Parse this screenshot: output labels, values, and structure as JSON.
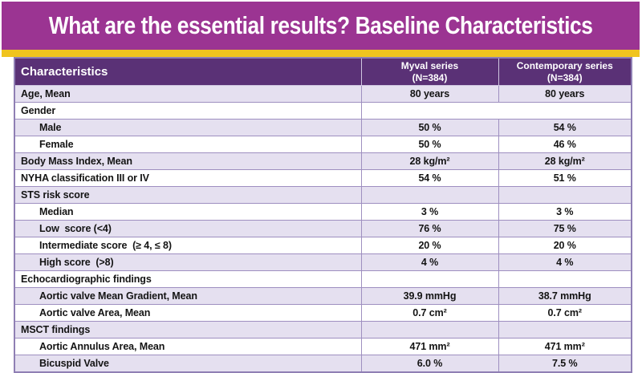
{
  "slide": {
    "title": "What are the essential results? Baseline Characteristics"
  },
  "colors": {
    "title_bg": "#9B3492",
    "accent_strip": "#F0C41F",
    "table_header_bg": "#5A3176",
    "row_shade": "#E5E0F0",
    "grid_border": "#9E8FC0"
  },
  "table": {
    "header": {
      "characteristics": "Characteristics",
      "myval_line1": "Myval series",
      "myval_line2": "(N=384)",
      "contemporary_line1": "Contemporary series",
      "contemporary_line2": "(N=384)"
    },
    "rows": [
      {
        "label": "Age, Mean",
        "myval": "80 years",
        "contemporary": "80 years"
      },
      {
        "label": "Gender",
        "myval": "",
        "contemporary": ""
      },
      {
        "label": "Male",
        "myval": "50 %",
        "contemporary": "54 %"
      },
      {
        "label": "Female",
        "myval": "50 %",
        "contemporary": "46 %"
      },
      {
        "label": "Body Mass Index, Mean",
        "myval": "28 kg/m²",
        "contemporary": "28 kg/m²"
      },
      {
        "label": "NYHA classification III or IV",
        "myval": "54 %",
        "contemporary": "51 %"
      },
      {
        "label": "STS risk score",
        "myval": "",
        "contemporary": ""
      },
      {
        "label": "Median",
        "myval": "3 %",
        "contemporary": "3 %"
      },
      {
        "label": "Low  score (<4)",
        "myval": "76 %",
        "contemporary": "75 %"
      },
      {
        "label": "Intermediate score  (≥ 4, ≤ 8)",
        "myval": "20 %",
        "contemporary": "20 %"
      },
      {
        "label": "High score  (>8)",
        "myval": "4 %",
        "contemporary": "4 %"
      },
      {
        "label": "Echocardiographic findings",
        "myval": "",
        "contemporary": ""
      },
      {
        "label": "Aortic valve Mean Gradient, Mean",
        "myval": "39.9 mmHg",
        "contemporary": "38.7 mmHg"
      },
      {
        "label": "Aortic valve Area, Mean",
        "myval": "0.7 cm²",
        "contemporary": "0.7 cm²"
      },
      {
        "label": "MSCT findings",
        "myval": "",
        "contemporary": ""
      },
      {
        "label": "Aortic Annulus Area, Mean",
        "myval": "471 mm²",
        "contemporary": "471 mm²"
      },
      {
        "label": "Bicuspid Valve",
        "myval": "6.0 %",
        "contemporary": "7.5 %"
      }
    ]
  }
}
